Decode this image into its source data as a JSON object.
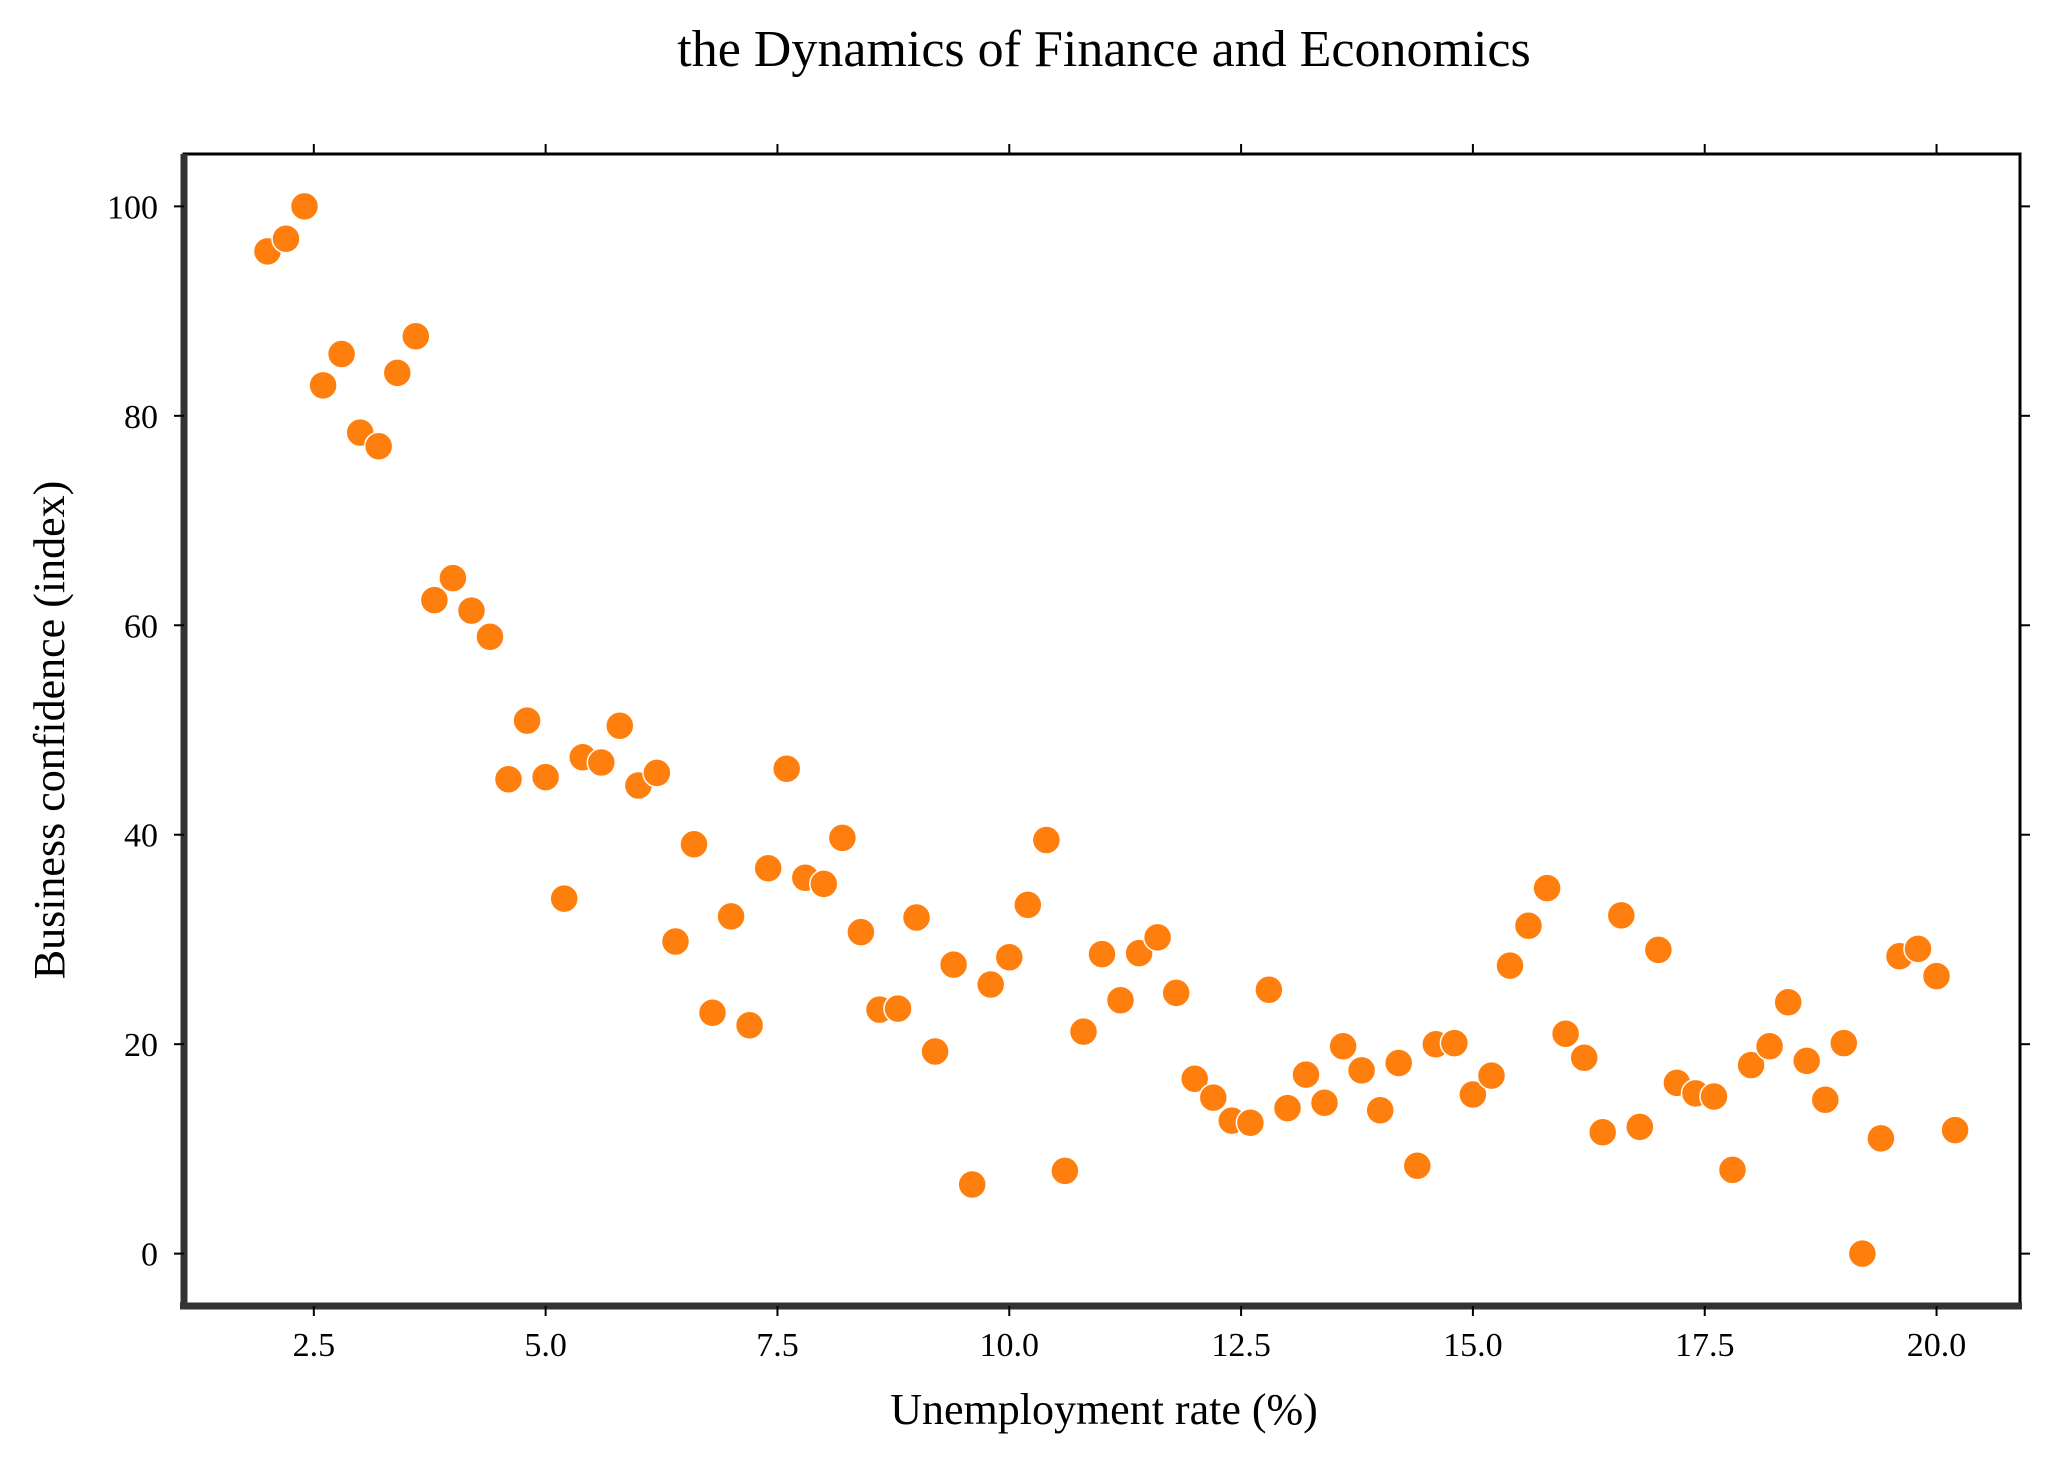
{
  "chart_data": {
    "type": "scatter",
    "title": "the Dynamics of Finance and Economics",
    "xlabel": "Unemployment rate (%)",
    "ylabel": "Business confidence (index)",
    "xlim": [
      1.1,
      20.9
    ],
    "ylim": [
      -5,
      105
    ],
    "xticks": [
      "2.5",
      "5.0",
      "7.5",
      "10.0",
      "12.5",
      "15.0",
      "17.5",
      "20.0"
    ],
    "yticks": [
      "0",
      "20",
      "40",
      "60",
      "80",
      "100"
    ],
    "grid": false,
    "legend": "none",
    "marker_color": "#ff7f0e",
    "marker_edge_color": "#ffffff",
    "points": [
      {
        "x": 2.0,
        "y": 95.7
      },
      {
        "x": 2.2,
        "y": 96.9
      },
      {
        "x": 2.4,
        "y": 100.0
      },
      {
        "x": 2.6,
        "y": 82.9
      },
      {
        "x": 2.8,
        "y": 85.9
      },
      {
        "x": 3.0,
        "y": 78.4
      },
      {
        "x": 3.2,
        "y": 77.1
      },
      {
        "x": 3.4,
        "y": 84.1
      },
      {
        "x": 3.6,
        "y": 87.6
      },
      {
        "x": 3.8,
        "y": 62.4
      },
      {
        "x": 4.0,
        "y": 64.5
      },
      {
        "x": 4.2,
        "y": 61.4
      },
      {
        "x": 4.4,
        "y": 58.9
      },
      {
        "x": 4.6,
        "y": 45.3
      },
      {
        "x": 4.8,
        "y": 50.9
      },
      {
        "x": 5.0,
        "y": 45.5
      },
      {
        "x": 5.2,
        "y": 33.9
      },
      {
        "x": 5.4,
        "y": 47.4
      },
      {
        "x": 5.6,
        "y": 46.9
      },
      {
        "x": 5.8,
        "y": 50.4
      },
      {
        "x": 6.0,
        "y": 44.7
      },
      {
        "x": 6.2,
        "y": 45.9
      },
      {
        "x": 6.4,
        "y": 29.8
      },
      {
        "x": 6.6,
        "y": 39.1
      },
      {
        "x": 6.8,
        "y": 23.0
      },
      {
        "x": 7.0,
        "y": 32.2
      },
      {
        "x": 7.2,
        "y": 21.8
      },
      {
        "x": 7.4,
        "y": 36.8
      },
      {
        "x": 7.6,
        "y": 46.3
      },
      {
        "x": 7.8,
        "y": 35.9
      },
      {
        "x": 8.0,
        "y": 35.3
      },
      {
        "x": 8.2,
        "y": 39.7
      },
      {
        "x": 8.4,
        "y": 30.7
      },
      {
        "x": 8.6,
        "y": 23.3
      },
      {
        "x": 8.8,
        "y": 23.4
      },
      {
        "x": 9.0,
        "y": 32.1
      },
      {
        "x": 9.2,
        "y": 19.3
      },
      {
        "x": 9.4,
        "y": 27.6
      },
      {
        "x": 9.6,
        "y": 6.6
      },
      {
        "x": 9.8,
        "y": 25.7
      },
      {
        "x": 10.0,
        "y": 28.3
      },
      {
        "x": 10.2,
        "y": 33.3
      },
      {
        "x": 10.4,
        "y": 39.5
      },
      {
        "x": 10.6,
        "y": 7.9
      },
      {
        "x": 10.8,
        "y": 21.2
      },
      {
        "x": 11.0,
        "y": 28.6
      },
      {
        "x": 11.2,
        "y": 24.2
      },
      {
        "x": 11.4,
        "y": 28.7
      },
      {
        "x": 11.6,
        "y": 30.2
      },
      {
        "x": 11.8,
        "y": 24.9
      },
      {
        "x": 12.0,
        "y": 16.7
      },
      {
        "x": 12.2,
        "y": 14.9
      },
      {
        "x": 12.4,
        "y": 12.7
      },
      {
        "x": 12.6,
        "y": 12.5
      },
      {
        "x": 12.8,
        "y": 25.2
      },
      {
        "x": 13.0,
        "y": 13.9
      },
      {
        "x": 13.2,
        "y": 17.1
      },
      {
        "x": 13.4,
        "y": 14.4
      },
      {
        "x": 13.6,
        "y": 19.8
      },
      {
        "x": 13.8,
        "y": 17.5
      },
      {
        "x": 14.0,
        "y": 13.7
      },
      {
        "x": 14.2,
        "y": 18.2
      },
      {
        "x": 14.4,
        "y": 8.4
      },
      {
        "x": 14.6,
        "y": 20.0
      },
      {
        "x": 14.8,
        "y": 20.1
      },
      {
        "x": 15.0,
        "y": 15.2
      },
      {
        "x": 15.2,
        "y": 17.0
      },
      {
        "x": 15.4,
        "y": 27.5
      },
      {
        "x": 15.6,
        "y": 31.3
      },
      {
        "x": 15.8,
        "y": 34.9
      },
      {
        "x": 16.0,
        "y": 21.0
      },
      {
        "x": 16.2,
        "y": 18.7
      },
      {
        "x": 16.4,
        "y": 11.6
      },
      {
        "x": 16.6,
        "y": 32.3
      },
      {
        "x": 16.8,
        "y": 12.1
      },
      {
        "x": 17.0,
        "y": 29.0
      },
      {
        "x": 17.2,
        "y": 16.3
      },
      {
        "x": 17.4,
        "y": 15.3
      },
      {
        "x": 17.6,
        "y": 15.0
      },
      {
        "x": 17.8,
        "y": 8.0
      },
      {
        "x": 18.0,
        "y": 18.0
      },
      {
        "x": 18.2,
        "y": 19.8
      },
      {
        "x": 18.4,
        "y": 24.0
      },
      {
        "x": 18.6,
        "y": 18.4
      },
      {
        "x": 18.8,
        "y": 14.7
      },
      {
        "x": 19.0,
        "y": 20.1
      },
      {
        "x": 19.2,
        "y": 0.0
      },
      {
        "x": 19.4,
        "y": 11.0
      },
      {
        "x": 19.6,
        "y": 28.4
      },
      {
        "x": 19.8,
        "y": 29.1
      },
      {
        "x": 20.0,
        "y": 26.5
      },
      {
        "x": 20.2,
        "y": 11.8
      }
    ]
  }
}
